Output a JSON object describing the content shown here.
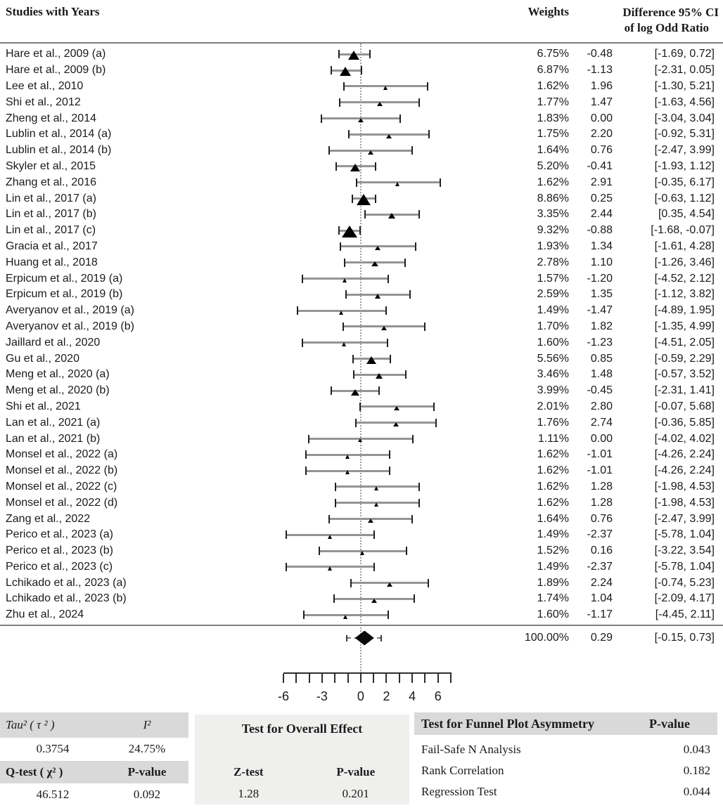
{
  "header": {
    "studies": "Studies with Years",
    "weights": "Weights",
    "difference_line1": "Difference 95% CI",
    "difference_line2": "of log Odd Ratio"
  },
  "chart_data": {
    "type": "forest",
    "effect_measure": "Difference of log Odd Ratio",
    "axis": {
      "min": -6,
      "max": 7,
      "tick_step": 1,
      "labeled_ticks": [
        -6,
        -3,
        0,
        2,
        4,
        6
      ],
      "zero_line": 0
    },
    "studies": [
      {
        "label": "Hare et al., 2009 (a)",
        "weight_pct": 6.75,
        "estimate": -0.48,
        "ci_low": -1.69,
        "ci_high": 0.72
      },
      {
        "label": "Hare et al., 2009 (b)",
        "weight_pct": 6.87,
        "estimate": -1.13,
        "ci_low": -2.31,
        "ci_high": 0.05
      },
      {
        "label": "Lee et al., 2010",
        "weight_pct": 1.62,
        "estimate": 1.96,
        "ci_low": -1.3,
        "ci_high": 5.21
      },
      {
        "label": "Shi et al., 2012",
        "weight_pct": 1.77,
        "estimate": 1.47,
        "ci_low": -1.63,
        "ci_high": 4.56
      },
      {
        "label": "Zheng et al., 2014",
        "weight_pct": 1.83,
        "estimate": 0.0,
        "ci_low": -3.04,
        "ci_high": 3.04
      },
      {
        "label": "Lublin et al., 2014 (a)",
        "weight_pct": 1.75,
        "estimate": 2.2,
        "ci_low": -0.92,
        "ci_high": 5.31
      },
      {
        "label": "Lublin et al., 2014 (b)",
        "weight_pct": 1.64,
        "estimate": 0.76,
        "ci_low": -2.47,
        "ci_high": 3.99
      },
      {
        "label": "Skyler et al., 2015",
        "weight_pct": 5.2,
        "estimate": -0.41,
        "ci_low": -1.93,
        "ci_high": 1.12
      },
      {
        "label": "Zhang et al., 2016",
        "weight_pct": 1.62,
        "estimate": 2.91,
        "ci_low": -0.35,
        "ci_high": 6.17
      },
      {
        "label": "Lin et al., 2017 (a)",
        "weight_pct": 8.86,
        "estimate": 0.25,
        "ci_low": -0.63,
        "ci_high": 1.12
      },
      {
        "label": "Lin et al., 2017 (b)",
        "weight_pct": 3.35,
        "estimate": 2.44,
        "ci_low": 0.35,
        "ci_high": 4.54
      },
      {
        "label": "Lin et al., 2017 (c)",
        "weight_pct": 9.32,
        "estimate": -0.88,
        "ci_low": -1.68,
        "ci_high": -0.07
      },
      {
        "label": "Gracia et al., 2017",
        "weight_pct": 1.93,
        "estimate": 1.34,
        "ci_low": -1.61,
        "ci_high": 4.28
      },
      {
        "label": "Huang et al., 2018",
        "weight_pct": 2.78,
        "estimate": 1.1,
        "ci_low": -1.26,
        "ci_high": 3.46
      },
      {
        "label": "Erpicum et al., 2019 (a)",
        "weight_pct": 1.57,
        "estimate": -1.2,
        "ci_low": -4.52,
        "ci_high": 2.12
      },
      {
        "label": "Erpicum et al., 2019 (b)",
        "weight_pct": 2.59,
        "estimate": 1.35,
        "ci_low": -1.12,
        "ci_high": 3.82
      },
      {
        "label": "Averyanov et al., 2019 (a)",
        "weight_pct": 1.49,
        "estimate": -1.47,
        "ci_low": -4.89,
        "ci_high": 1.95
      },
      {
        "label": "Averyanov et al., 2019 (b)",
        "weight_pct": 1.7,
        "estimate": 1.82,
        "ci_low": -1.35,
        "ci_high": 4.99
      },
      {
        "label": "Jaillard et al., 2020",
        "weight_pct": 1.6,
        "estimate": -1.23,
        "ci_low": -4.51,
        "ci_high": 2.05
      },
      {
        "label": "Gu et al., 2020",
        "weight_pct": 5.56,
        "estimate": 0.85,
        "ci_low": -0.59,
        "ci_high": 2.29
      },
      {
        "label": "Meng et al., 2020 (a)",
        "weight_pct": 3.46,
        "estimate": 1.48,
        "ci_low": -0.57,
        "ci_high": 3.52
      },
      {
        "label": "Meng et al., 2020 (b)",
        "weight_pct": 3.99,
        "estimate": -0.45,
        "ci_low": -2.31,
        "ci_high": 1.41
      },
      {
        "label": "Shi et al., 2021",
        "weight_pct": 2.01,
        "estimate": 2.8,
        "ci_low": -0.07,
        "ci_high": 5.68
      },
      {
        "label": "Lan et al., 2021 (a)",
        "weight_pct": 1.76,
        "estimate": 2.74,
        "ci_low": -0.36,
        "ci_high": 5.85
      },
      {
        "label": "Lan et al., 2021 (b)",
        "weight_pct": 1.11,
        "estimate": 0.0,
        "ci_low": -4.02,
        "ci_high": 4.02
      },
      {
        "label": "Monsel et al., 2022 (a)",
        "weight_pct": 1.62,
        "estimate": -1.01,
        "ci_low": -4.26,
        "ci_high": 2.24
      },
      {
        "label": "Monsel et al., 2022 (b)",
        "weight_pct": 1.62,
        "estimate": -1.01,
        "ci_low": -4.26,
        "ci_high": 2.24
      },
      {
        "label": "Monsel et al., 2022 (c)",
        "weight_pct": 1.62,
        "estimate": 1.28,
        "ci_low": -1.98,
        "ci_high": 4.53
      },
      {
        "label": "Monsel et al., 2022 (d)",
        "weight_pct": 1.62,
        "estimate": 1.28,
        "ci_low": -1.98,
        "ci_high": 4.53
      },
      {
        "label": "Zang et al., 2022",
        "weight_pct": 1.64,
        "estimate": 0.76,
        "ci_low": -2.47,
        "ci_high": 3.99
      },
      {
        "label": "Perico et al., 2023 (a)",
        "weight_pct": 1.49,
        "estimate": -2.37,
        "ci_low": -5.78,
        "ci_high": 1.04
      },
      {
        "label": "Perico et al., 2023 (b)",
        "weight_pct": 1.52,
        "estimate": 0.16,
        "ci_low": -3.22,
        "ci_high": 3.54
      },
      {
        "label": "Perico et al., 2023 (c)",
        "weight_pct": 1.49,
        "estimate": -2.37,
        "ci_low": -5.78,
        "ci_high": 1.04
      },
      {
        "label": "Lchikado et al., 2023 (a)",
        "weight_pct": 1.89,
        "estimate": 2.24,
        "ci_low": -0.74,
        "ci_high": 5.23
      },
      {
        "label": "Lchikado et al., 2023 (b)",
        "weight_pct": 1.74,
        "estimate": 1.04,
        "ci_low": -2.09,
        "ci_high": 4.17
      },
      {
        "label": "Zhu et al., 2024",
        "weight_pct": 1.6,
        "estimate": -1.17,
        "ci_low": -4.45,
        "ci_high": 2.11
      }
    ],
    "summary": {
      "weight_pct": 100.0,
      "estimate": 0.29,
      "ci_low": -0.15,
      "ci_high": 0.73,
      "whisker_low": -1.1,
      "whisker_high": 1.6
    }
  },
  "stats": {
    "heterogeneity": {
      "tau2_label": "Tau² ( τ ² )",
      "tau2": "0.3754",
      "i2_label": "I²",
      "i2": "24.75%",
      "q_label": "Q-test ( χ² )",
      "q": "46.512",
      "qp_label": "P-value",
      "qp": "0.092"
    },
    "overall": {
      "title": "Test for Overall Effect",
      "z_label": "Z-test",
      "z": "1.28",
      "p_label": "P-value",
      "p": "0.201"
    },
    "funnel": {
      "title": "Test for Funnel Plot Asymmetry",
      "p_label": "P-value",
      "rows": [
        {
          "label": "Fail-Safe N Analysis",
          "p": "0.043"
        },
        {
          "label": "Rank Correlation",
          "p": "0.182"
        },
        {
          "label": "Regression Test",
          "p": "0.044"
        }
      ]
    }
  }
}
